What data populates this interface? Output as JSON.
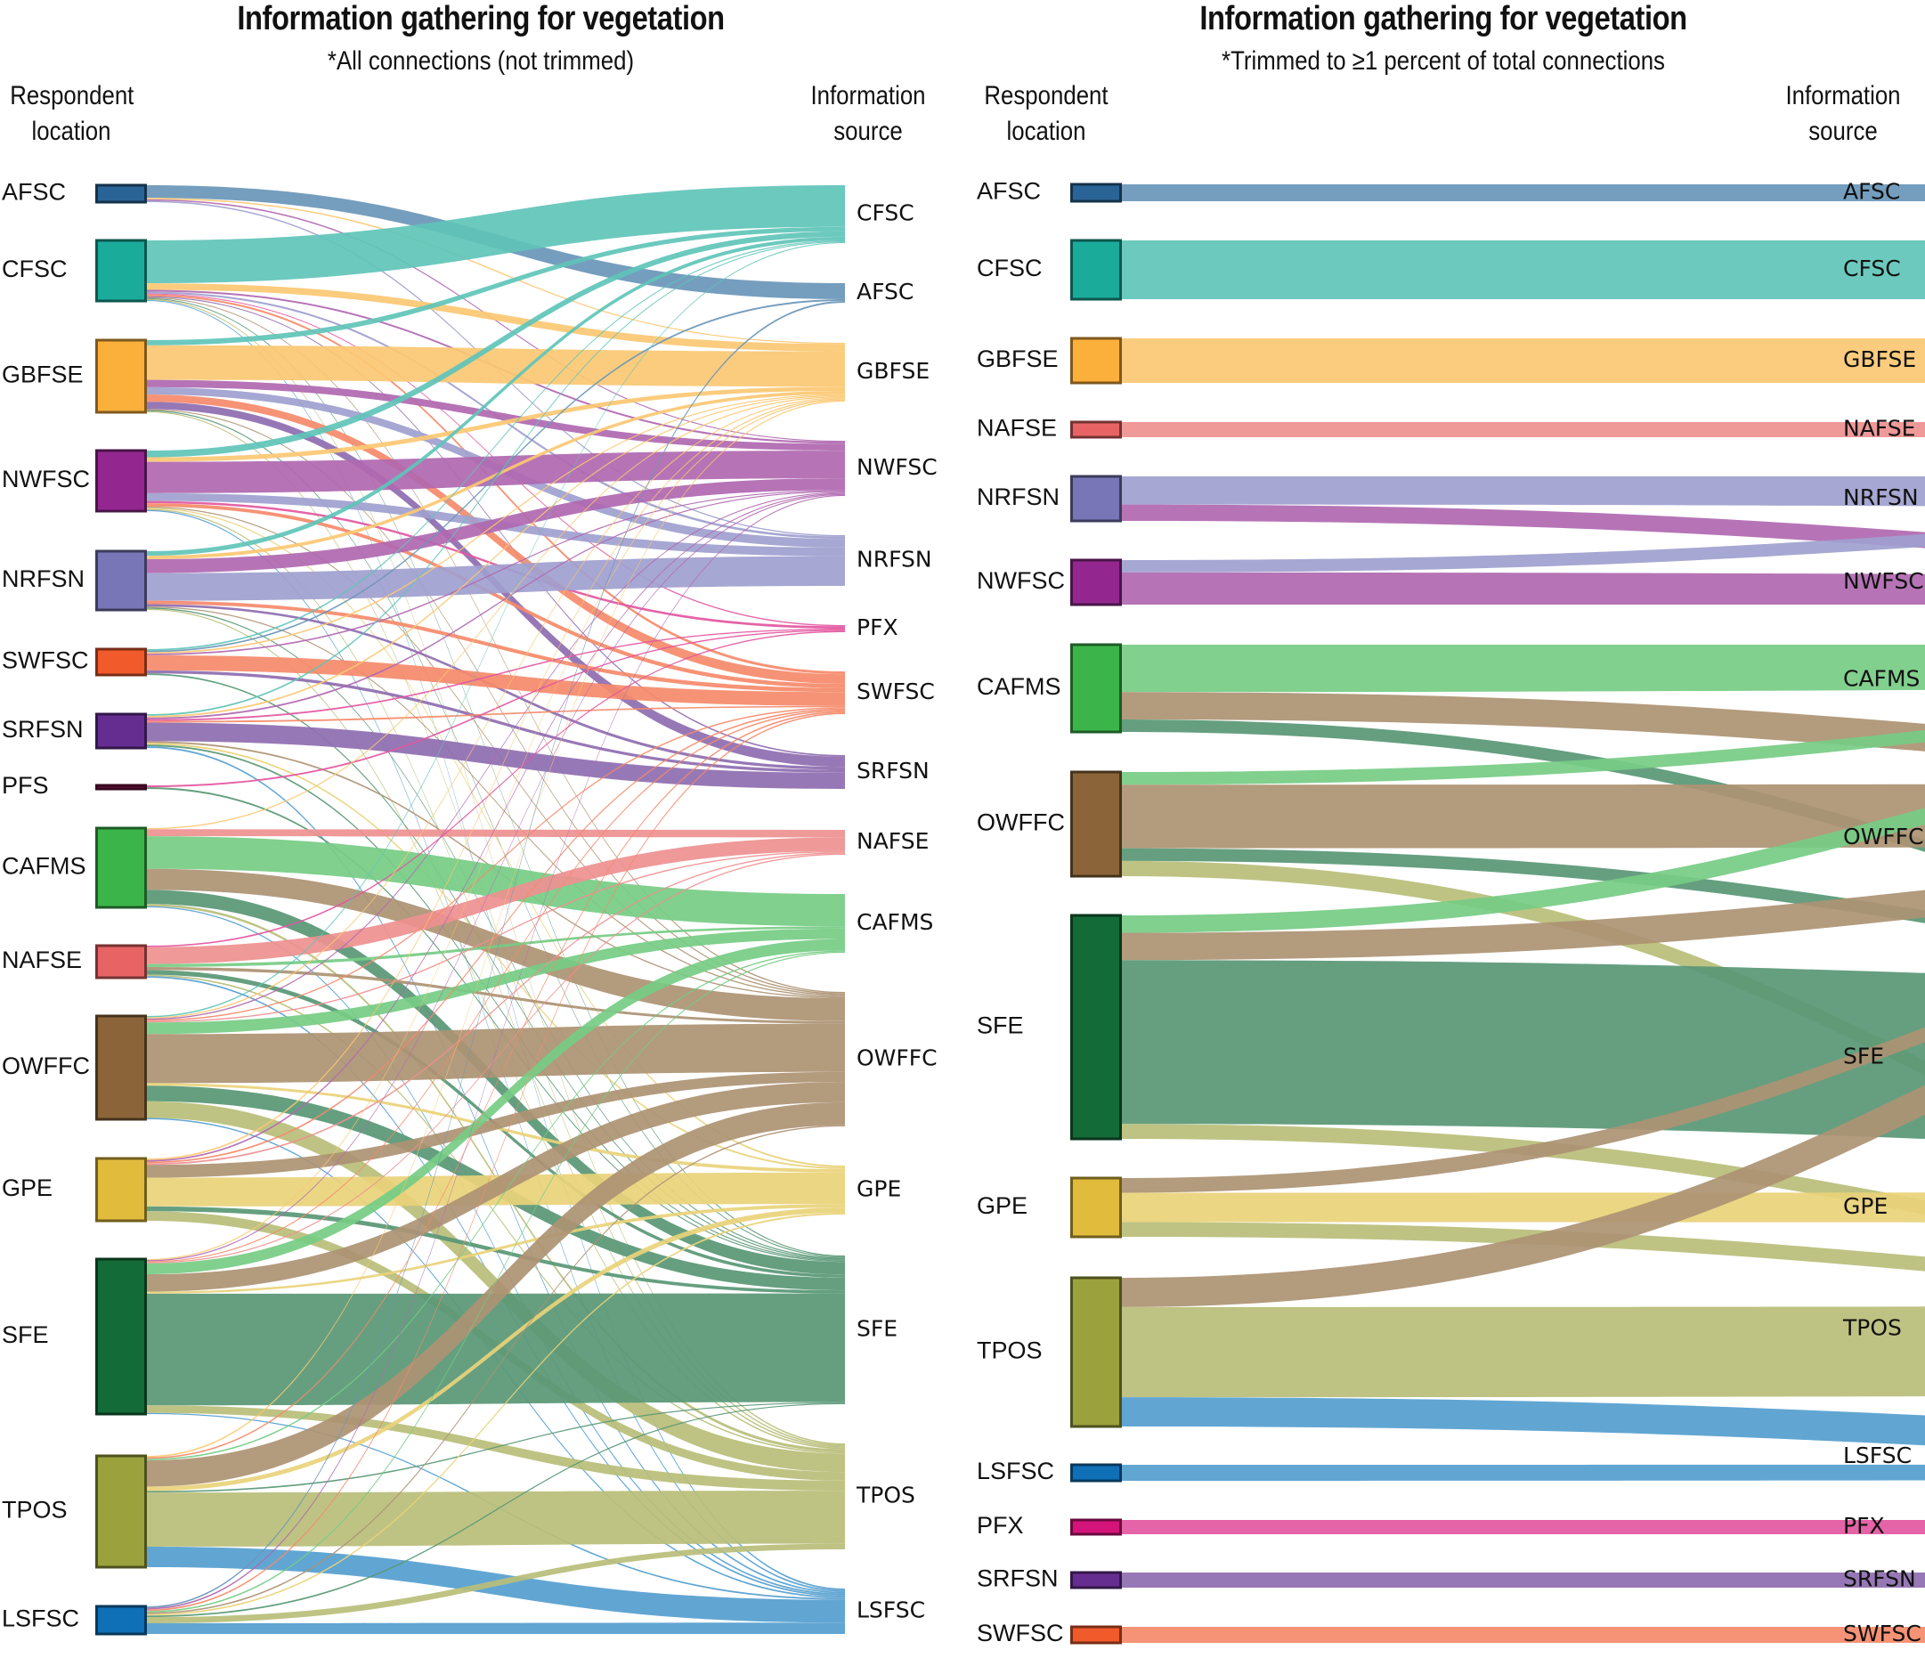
{
  "chart_data": [
    {
      "type": "sankey",
      "title": "Information gathering for vegetation",
      "subtitle": "*All connections (not trimmed)",
      "left_axis_label": "Respondent location",
      "right_axis_label": "Information source",
      "left_nodes": [
        {
          "name": "AFSC",
          "color": "#2a6496"
        },
        {
          "name": "CFSC",
          "color": "#1aab9b"
        },
        {
          "name": "GBFSE",
          "color": "#fbb03b"
        },
        {
          "name": "NWFSC",
          "color": "#93278f"
        },
        {
          "name": "NRFSN",
          "color": "#7876b7"
        },
        {
          "name": "SWFSC",
          "color": "#f15a2b"
        },
        {
          "name": "SRFSN",
          "color": "#662d91"
        },
        {
          "name": "PFS",
          "color": "#6b0f3d"
        },
        {
          "name": "CAFMS",
          "color": "#3bb54a"
        },
        {
          "name": "NAFSE",
          "color": "#e86464"
        },
        {
          "name": "OWFFC",
          "color": "#8b6539"
        },
        {
          "name": "GPE",
          "color": "#e0bb3c"
        },
        {
          "name": "SFE",
          "color": "#136b38"
        },
        {
          "name": "TPOS",
          "color": "#9aa13d"
        },
        {
          "name": "LSFSC",
          "color": "#0f70b7"
        }
      ],
      "right_nodes": [
        {
          "name": "CFSC",
          "color": "#1aab9b",
          "link_color": "#5fc4b8"
        },
        {
          "name": "AFSC",
          "color": "#2a6496",
          "link_color": "#6996b8"
        },
        {
          "name": "GBFSE",
          "color": "#fbb03b",
          "link_color": "#fbc872"
        },
        {
          "name": "NWFSC",
          "color": "#93278f",
          "link_color": "#b068b0"
        },
        {
          "name": "NRFSN",
          "color": "#7876b7",
          "link_color": "#a0a0cf"
        },
        {
          "name": "PFX",
          "color": "#d4147a",
          "link_color": "#e356a0"
        },
        {
          "name": "SWFSC",
          "color": "#f15a2b",
          "link_color": "#f58a6a"
        },
        {
          "name": "SRFSN",
          "color": "#662d91",
          "link_color": "#8e6cb0"
        },
        {
          "name": "NAFSE",
          "color": "#e86464",
          "link_color": "#ee9090"
        },
        {
          "name": "CAFMS",
          "color": "#3bb54a",
          "link_color": "#76cc84"
        },
        {
          "name": "OWFFC",
          "color": "#8b6539",
          "link_color": "#ad9273"
        },
        {
          "name": "GPE",
          "color": "#e0bb3c",
          "link_color": "#e9d27a"
        },
        {
          "name": "SFE",
          "color": "#136b38",
          "link_color": "#589775"
        },
        {
          "name": "TPOS",
          "color": "#9aa13d",
          "link_color": "#b8be78"
        },
        {
          "name": "LSFSC",
          "color": "#0f70b7",
          "link_color": "#549ecf"
        }
      ],
      "links": [
        [
          "AFSC",
          "AFSC",
          9
        ],
        [
          "AFSC",
          "NWFSC",
          1
        ],
        [
          "AFSC",
          "GBFSE",
          1
        ],
        [
          "AFSC",
          "NRFSN",
          1
        ],
        [
          "CFSC",
          "CFSC",
          46
        ],
        [
          "CFSC",
          "GBFSE",
          7
        ],
        [
          "CFSC",
          "NWFSC",
          2
        ],
        [
          "CFSC",
          "NRFSN",
          2
        ],
        [
          "CFSC",
          "PFX",
          1
        ],
        [
          "CFSC",
          "SWFSC",
          2
        ],
        [
          "CFSC",
          "SRFSN",
          1
        ],
        [
          "CFSC",
          "OWFFC",
          1
        ],
        [
          "CFSC",
          "SFE",
          1
        ],
        [
          "CFSC",
          "TPOS",
          1
        ],
        [
          "CFSC",
          "LSFSC",
          1
        ],
        [
          "GBFSE",
          "CFSC",
          5
        ],
        [
          "GBFSE",
          "GBFSE",
          33
        ],
        [
          "GBFSE",
          "NWFSC",
          7
        ],
        [
          "GBFSE",
          "NRFSN",
          7
        ],
        [
          "GBFSE",
          "SWFSC",
          7
        ],
        [
          "GBFSE",
          "SRFSN",
          7
        ],
        [
          "GBFSE",
          "OWFFC",
          1
        ],
        [
          "GBFSE",
          "SFE",
          1
        ],
        [
          "GBFSE",
          "TPOS",
          1
        ],
        [
          "NWFSC",
          "CFSC",
          6
        ],
        [
          "NWFSC",
          "GBFSE",
          4
        ],
        [
          "NWFSC",
          "NWFSC",
          28
        ],
        [
          "NWFSC",
          "NRFSN",
          7
        ],
        [
          "NWFSC",
          "PFX",
          2
        ],
        [
          "NWFSC",
          "SWFSC",
          3
        ],
        [
          "NWFSC",
          "OWFFC",
          1
        ],
        [
          "NWFSC",
          "GPE",
          1
        ],
        [
          "NWFSC",
          "TPOS",
          1
        ],
        [
          "NWFSC",
          "LSFSC",
          1
        ],
        [
          "NRFSN",
          "CFSC",
          4
        ],
        [
          "NRFSN",
          "GBFSE",
          3
        ],
        [
          "NRFSN",
          "NWFSC",
          12
        ],
        [
          "NRFSN",
          "NRFSN",
          24
        ],
        [
          "NRFSN",
          "SWFSC",
          3
        ],
        [
          "NRFSN",
          "SRFSN",
          2
        ],
        [
          "NRFSN",
          "SFE",
          1
        ],
        [
          "NRFSN",
          "OWFFC",
          1
        ],
        [
          "NRFSN",
          "TPOS",
          1
        ],
        [
          "SWFSC",
          "CFSC",
          1
        ],
        [
          "SWFSC",
          "AFSC",
          1
        ],
        [
          "SWFSC",
          "GBFSE",
          1
        ],
        [
          "SWFSC",
          "NWFSC",
          1
        ],
        [
          "SWFSC",
          "SWFSC",
          10
        ],
        [
          "SWFSC",
          "SRFSN",
          2
        ],
        [
          "SWFSC",
          "SFE",
          1
        ],
        [
          "SRFSN",
          "CFSC",
          1
        ],
        [
          "SRFSN",
          "GBFSE",
          1
        ],
        [
          "SRFSN",
          "NWFSC",
          1
        ],
        [
          "SRFSN",
          "PFX",
          1
        ],
        [
          "SRFSN",
          "SWFSC",
          1
        ],
        [
          "SRFSN",
          "SRFSN",
          11
        ],
        [
          "SRFSN",
          "OWFFC",
          1
        ],
        [
          "SRFSN",
          "GPE",
          1
        ],
        [
          "SRFSN",
          "SFE",
          1
        ],
        [
          "SRFSN",
          "LSFSC",
          1
        ],
        [
          "PFS",
          "PFX",
          1
        ],
        [
          "PFS",
          "SFE",
          1
        ],
        [
          "CAFMS",
          "GBFSE",
          1
        ],
        [
          "CAFMS",
          "NAFSE",
          6
        ],
        [
          "CAFMS",
          "CAFMS",
          28
        ],
        [
          "CAFMS",
          "OWFFC",
          18
        ],
        [
          "CAFMS",
          "SFE",
          12
        ],
        [
          "CAFMS",
          "TPOS",
          2
        ],
        [
          "CAFMS",
          "LSFSC",
          1
        ],
        [
          "NAFSE",
          "PFX",
          1
        ],
        [
          "NAFSE",
          "NAFSE",
          11
        ],
        [
          "NAFSE",
          "CAFMS",
          2
        ],
        [
          "NAFSE",
          "OWFFC",
          2
        ],
        [
          "NAFSE",
          "SFE",
          3
        ],
        [
          "NAFSE",
          "TPOS",
          1
        ],
        [
          "NAFSE",
          "LSFSC",
          1
        ],
        [
          "OWFFC",
          "CFSC",
          1
        ],
        [
          "OWFFC",
          "GBFSE",
          1
        ],
        [
          "OWFFC",
          "NWFSC",
          1
        ],
        [
          "OWFFC",
          "SWFSC",
          1
        ],
        [
          "OWFFC",
          "NAFSE",
          1
        ],
        [
          "OWFFC",
          "CAFMS",
          9
        ],
        [
          "OWFFC",
          "OWFFC",
          38
        ],
        [
          "OWFFC",
          "GPE",
          2
        ],
        [
          "OWFFC",
          "SFE",
          12
        ],
        [
          "OWFFC",
          "TPOS",
          13
        ],
        [
          "OWFFC",
          "LSFSC",
          1
        ],
        [
          "GPE",
          "GBFSE",
          1
        ],
        [
          "GPE",
          "NWFSC",
          1
        ],
        [
          "GPE",
          "SWFSC",
          1
        ],
        [
          "GPE",
          "NAFSE",
          1
        ],
        [
          "GPE",
          "OWFFC",
          8
        ],
        [
          "GPE",
          "GPE",
          18
        ],
        [
          "GPE",
          "SFE",
          3
        ],
        [
          "GPE",
          "TPOS",
          6
        ],
        [
          "SFE",
          "GBFSE",
          1
        ],
        [
          "SFE",
          "NWFSC",
          1
        ],
        [
          "SFE",
          "SWFSC",
          1
        ],
        [
          "SFE",
          "NAFSE",
          1
        ],
        [
          "SFE",
          "CAFMS",
          10
        ],
        [
          "SFE",
          "OWFFC",
          16
        ],
        [
          "SFE",
          "GPE",
          2
        ],
        [
          "SFE",
          "SFE",
          103
        ],
        [
          "SFE",
          "TPOS",
          7
        ],
        [
          "SFE",
          "LSFSC",
          1
        ],
        [
          "TPOS",
          "GBFSE",
          1
        ],
        [
          "TPOS",
          "SWFSC",
          1
        ],
        [
          "TPOS",
          "CAFMS",
          1
        ],
        [
          "TPOS",
          "OWFFC",
          18
        ],
        [
          "TPOS",
          "GPE",
          3
        ],
        [
          "TPOS",
          "SFE",
          1
        ],
        [
          "TPOS",
          "TPOS",
          37
        ],
        [
          "TPOS",
          "LSFSC",
          14
        ],
        [
          "LSFSC",
          "AFSC",
          1
        ],
        [
          "LSFSC",
          "NWFSC",
          1
        ],
        [
          "LSFSC",
          "SWFSC",
          1
        ],
        [
          "LSFSC",
          "CAFMS",
          1
        ],
        [
          "LSFSC",
          "OWFFC",
          1
        ],
        [
          "LSFSC",
          "GPE",
          1
        ],
        [
          "LSFSC",
          "SFE",
          1
        ],
        [
          "LSFSC",
          "TPOS",
          4
        ],
        [
          "LSFSC",
          "LSFSC",
          7
        ]
      ]
    },
    {
      "type": "sankey",
      "title": "Information gathering for vegetation",
      "subtitle": "*Trimmed to ≥1 percent of total connections",
      "left_axis_label": "Respondent location",
      "right_axis_label": "Information source",
      "left_nodes": [
        {
          "name": "AFSC",
          "color": "#2a6496"
        },
        {
          "name": "CFSC",
          "color": "#1aab9b"
        },
        {
          "name": "GBFSE",
          "color": "#fbb03b"
        },
        {
          "name": "NAFSE",
          "color": "#e86464"
        },
        {
          "name": "NRFSN",
          "color": "#7876b7"
        },
        {
          "name": "NWFSC",
          "color": "#93278f"
        },
        {
          "name": "CAFMS",
          "color": "#3bb54a"
        },
        {
          "name": "OWFFC",
          "color": "#8b6539"
        },
        {
          "name": "SFE",
          "color": "#136b38"
        },
        {
          "name": "GPE",
          "color": "#e0bb3c"
        },
        {
          "name": "TPOS",
          "color": "#9aa13d"
        },
        {
          "name": "LSFSC",
          "color": "#0f70b7"
        },
        {
          "name": "PFX",
          "color": "#d4147a"
        },
        {
          "name": "SRFSN",
          "color": "#662d91"
        },
        {
          "name": "SWFSC",
          "color": "#f15a2b"
        }
      ],
      "right_nodes": [
        {
          "name": "AFSC",
          "color": "#2a6496",
          "link_color": "#6996b8"
        },
        {
          "name": "CFSC",
          "color": "#1aab9b",
          "link_color": "#5fc4b8"
        },
        {
          "name": "GBFSE",
          "color": "#fbb03b",
          "link_color": "#fbc872"
        },
        {
          "name": "NAFSE",
          "color": "#e86464",
          "link_color": "#ee9090"
        },
        {
          "name": "NRFSN",
          "color": "#7876b7",
          "link_color": "#a0a0cf"
        },
        {
          "name": "NWFSC",
          "color": "#93278f",
          "link_color": "#b068b0"
        },
        {
          "name": "CAFMS",
          "color": "#3bb54a",
          "link_color": "#76cc84"
        },
        {
          "name": "OWFFC",
          "color": "#8b6539",
          "link_color": "#ad9273"
        },
        {
          "name": "SFE",
          "color": "#136b38",
          "link_color": "#589775"
        },
        {
          "name": "GPE",
          "color": "#e0bb3c",
          "link_color": "#e9d27a"
        },
        {
          "name": "TPOS",
          "color": "#9aa13d",
          "link_color": "#b8be78"
        },
        {
          "name": "LSFSC",
          "color": "#0f70b7",
          "link_color": "#549ecf"
        },
        {
          "name": "PFX",
          "color": "#d4147a",
          "link_color": "#e356a0"
        },
        {
          "name": "SRFSN",
          "color": "#662d91",
          "link_color": "#8e6cb0"
        },
        {
          "name": "SWFSC",
          "color": "#f15a2b",
          "link_color": "#f58a6a"
        }
      ],
      "links": [
        [
          "AFSC",
          "AFSC",
          10
        ],
        [
          "CFSC",
          "CFSC",
          48
        ],
        [
          "GBFSE",
          "GBFSE",
          37
        ],
        [
          "NAFSE",
          "NAFSE",
          10
        ],
        [
          "NRFSN",
          "NRFSN",
          24
        ],
        [
          "NRFSN",
          "NWFSC",
          14
        ],
        [
          "NWFSC",
          "NRFSN",
          10
        ],
        [
          "NWFSC",
          "NWFSC",
          26
        ],
        [
          "CAFMS",
          "CAFMS",
          38
        ],
        [
          "CAFMS",
          "OWFFC",
          22
        ],
        [
          "CAFMS",
          "SFE",
          10
        ],
        [
          "OWFFC",
          "CAFMS",
          10
        ],
        [
          "OWFFC",
          "OWFFC",
          50
        ],
        [
          "OWFFC",
          "SFE",
          10
        ],
        [
          "OWFFC",
          "TPOS",
          12
        ],
        [
          "SFE",
          "CAFMS",
          14
        ],
        [
          "SFE",
          "OWFFC",
          22
        ],
        [
          "SFE",
          "SFE",
          132
        ],
        [
          "SFE",
          "TPOS",
          12
        ],
        [
          "GPE",
          "OWFFC",
          12
        ],
        [
          "GPE",
          "GPE",
          24
        ],
        [
          "GPE",
          "TPOS",
          12
        ],
        [
          "TPOS",
          "OWFFC",
          24
        ],
        [
          "TPOS",
          "TPOS",
          74
        ],
        [
          "TPOS",
          "LSFSC",
          24
        ],
        [
          "LSFSC",
          "LSFSC",
          12
        ],
        [
          "PFX",
          "PFX",
          12
        ],
        [
          "SRFSN",
          "SRFSN",
          12
        ],
        [
          "SWFSC",
          "SWFSC",
          12
        ]
      ]
    }
  ]
}
